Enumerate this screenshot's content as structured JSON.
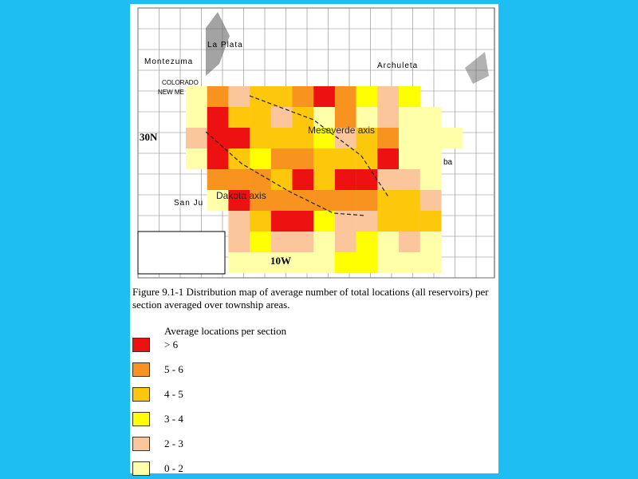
{
  "map": {
    "labels": {
      "la_plata": "La Plata",
      "montezuma": "Montezuma",
      "archuleta": "Archuleta",
      "colorado": "COLORADO",
      "new_mexico": "NEW ME",
      "township": "30N",
      "range": "10W",
      "san_juan": "San Ju",
      "rio_arriba": "ba"
    },
    "axes": {
      "mesaverde": "Mesaverde axis",
      "dakota": "Dakota axis"
    }
  },
  "caption": "Figure 9.1-1 Distribution map of average number of total locations (all reservoirs) per section averaged over township areas.",
  "legend": {
    "title": "Average locations per section",
    "items": [
      {
        "label": "> 6",
        "color": "#ee1111"
      },
      {
        "label": "5 - 6",
        "color": "#f7931e"
      },
      {
        "label": "4 - 5",
        "color": "#fdc80c"
      },
      {
        "label": "3 - 4",
        "color": "#ffff00"
      },
      {
        "label": "2 - 3",
        "color": "#fcc69c"
      },
      {
        "label": "0 - 2",
        "color": "#ffffaa"
      }
    ]
  }
}
